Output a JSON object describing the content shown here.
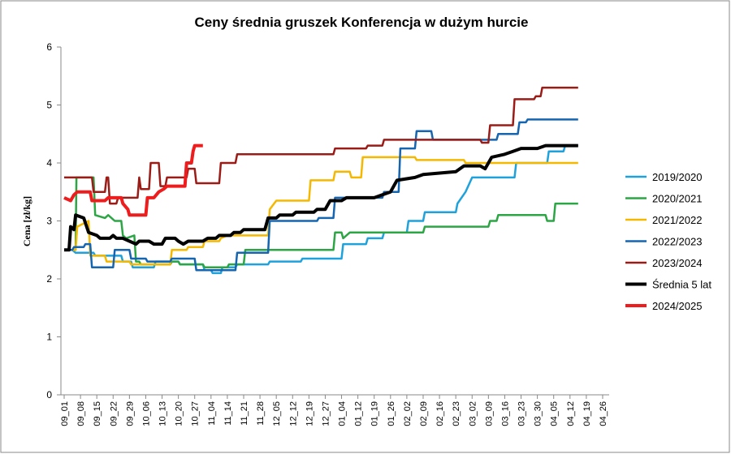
{
  "chart_data": {
    "type": "line",
    "title": "Ceny średnia gruszek Konferencja w dużym hurcie",
    "xlabel": "",
    "ylabel": "Cena [zł/kg]",
    "ylim": [
      0,
      6
    ],
    "yticks": [
      0,
      1,
      2,
      3,
      4,
      5,
      6
    ],
    "grid": "horizontal-none",
    "legend_position": "right",
    "x_ticks": [
      "09_01",
      "09_08",
      "09_15",
      "09_22",
      "09_29",
      "10_06",
      "10_13",
      "10_20",
      "10_27",
      "11_04",
      "11_14",
      "11_21",
      "11_28",
      "12_05",
      "12_12",
      "12_19",
      "12_27",
      "01_04",
      "01_12",
      "01_19",
      "01_26",
      "02_02",
      "02_09",
      "02_16",
      "02_23",
      "03_02",
      "03_09",
      "03_16",
      "03_23",
      "03_30",
      "04_05",
      "04_12",
      "04_19",
      "04_26"
    ],
    "series": [
      {
        "name": "2019/2020",
        "color": "#1fa2dc",
        "width": 2.5,
        "points": [
          [
            0,
            2.5
          ],
          [
            0.5,
            2.5
          ],
          [
            0.7,
            2.45
          ],
          [
            1.8,
            2.45
          ],
          [
            1.9,
            2.4
          ],
          [
            3.5,
            2.4
          ],
          [
            3.6,
            2.3
          ],
          [
            4.1,
            2.3
          ],
          [
            4.2,
            2.2
          ],
          [
            5.5,
            2.2
          ],
          [
            5.6,
            2.3
          ],
          [
            7.0,
            2.3
          ],
          [
            7.1,
            2.25
          ],
          [
            8.5,
            2.25
          ],
          [
            8.6,
            2.15
          ],
          [
            9.0,
            2.15
          ],
          [
            9.1,
            2.1
          ],
          [
            9.6,
            2.1
          ],
          [
            9.7,
            2.2
          ],
          [
            10.5,
            2.2
          ],
          [
            10.6,
            2.25
          ],
          [
            12.5,
            2.25
          ],
          [
            12.6,
            2.3
          ],
          [
            14.5,
            2.3
          ],
          [
            14.6,
            2.35
          ],
          [
            17.0,
            2.35
          ],
          [
            17.1,
            2.6
          ],
          [
            18.5,
            2.6
          ],
          [
            18.6,
            2.7
          ],
          [
            19.5,
            2.7
          ],
          [
            19.6,
            2.8
          ],
          [
            21.0,
            2.8
          ],
          [
            21.1,
            3.0
          ],
          [
            22.0,
            3.0
          ],
          [
            22.1,
            3.15
          ],
          [
            24.0,
            3.15
          ],
          [
            24.1,
            3.3
          ],
          [
            24.6,
            3.5
          ],
          [
            25.0,
            3.75
          ],
          [
            27.6,
            3.75
          ],
          [
            27.7,
            4.0
          ],
          [
            29.6,
            4.0
          ],
          [
            29.7,
            4.2
          ],
          [
            30.6,
            4.2
          ],
          [
            30.7,
            4.3
          ],
          [
            31.5,
            4.3
          ]
        ]
      },
      {
        "name": "2020/2021",
        "color": "#2ca645",
        "width": 2.5,
        "points": [
          [
            0,
            2.5
          ],
          [
            0.7,
            2.5
          ],
          [
            0.75,
            3.75
          ],
          [
            1.8,
            3.75
          ],
          [
            1.9,
            3.1
          ],
          [
            2.5,
            3.05
          ],
          [
            2.7,
            3.1
          ],
          [
            3.1,
            3.0
          ],
          [
            3.5,
            3.0
          ],
          [
            3.6,
            2.75
          ],
          [
            3.8,
            2.7
          ],
          [
            4.3,
            2.75
          ],
          [
            4.4,
            2.3
          ],
          [
            4.6,
            2.3
          ],
          [
            4.7,
            2.25
          ],
          [
            6.5,
            2.25
          ],
          [
            6.6,
            2.3
          ],
          [
            7.0,
            2.3
          ],
          [
            7.1,
            2.25
          ],
          [
            8.5,
            2.25
          ],
          [
            8.6,
            2.2
          ],
          [
            10.0,
            2.2
          ],
          [
            10.1,
            2.25
          ],
          [
            11.0,
            2.25
          ],
          [
            11.1,
            2.5
          ],
          [
            16.5,
            2.5
          ],
          [
            16.6,
            2.8
          ],
          [
            17.0,
            2.8
          ],
          [
            17.1,
            2.7
          ],
          [
            17.5,
            2.8
          ],
          [
            22.0,
            2.8
          ],
          [
            22.1,
            2.9
          ],
          [
            26.0,
            2.9
          ],
          [
            26.1,
            3.0
          ],
          [
            26.5,
            3.0
          ],
          [
            26.6,
            3.1
          ],
          [
            29.5,
            3.1
          ],
          [
            29.6,
            3.0
          ],
          [
            30.0,
            3.0
          ],
          [
            30.1,
            3.3
          ],
          [
            31.5,
            3.3
          ]
        ]
      },
      {
        "name": "2021/2022",
        "color": "#f5b800",
        "width": 2.5,
        "points": [
          [
            0,
            2.5
          ],
          [
            0.7,
            2.5
          ],
          [
            0.8,
            2.9
          ],
          [
            1.5,
            3.0
          ],
          [
            1.6,
            2.4
          ],
          [
            2.5,
            2.4
          ],
          [
            2.6,
            2.3
          ],
          [
            4.0,
            2.3
          ],
          [
            4.1,
            2.25
          ],
          [
            6.5,
            2.25
          ],
          [
            6.6,
            2.5
          ],
          [
            7.5,
            2.5
          ],
          [
            7.6,
            2.55
          ],
          [
            8.5,
            2.55
          ],
          [
            8.6,
            2.65
          ],
          [
            9.5,
            2.65
          ],
          [
            9.6,
            2.7
          ],
          [
            10.0,
            2.75
          ],
          [
            12.5,
            2.75
          ],
          [
            12.6,
            3.2
          ],
          [
            13.0,
            3.35
          ],
          [
            15.0,
            3.35
          ],
          [
            15.1,
            3.7
          ],
          [
            16.5,
            3.7
          ],
          [
            16.6,
            3.85
          ],
          [
            17.5,
            3.85
          ],
          [
            17.6,
            3.75
          ],
          [
            18.2,
            3.75
          ],
          [
            18.3,
            4.1
          ],
          [
            21.5,
            4.1
          ],
          [
            21.6,
            4.05
          ],
          [
            24.5,
            4.05
          ],
          [
            24.6,
            4.0
          ],
          [
            31.5,
            4.0
          ]
        ]
      },
      {
        "name": "2022/2023",
        "color": "#1565b0",
        "width": 2.5,
        "points": [
          [
            0,
            2.5
          ],
          [
            0.5,
            2.5
          ],
          [
            0.6,
            2.55
          ],
          [
            1.2,
            2.55
          ],
          [
            1.3,
            2.6
          ],
          [
            1.6,
            2.6
          ],
          [
            1.7,
            2.2
          ],
          [
            3.0,
            2.2
          ],
          [
            3.1,
            2.5
          ],
          [
            4.0,
            2.5
          ],
          [
            4.1,
            2.35
          ],
          [
            5.0,
            2.35
          ],
          [
            5.1,
            2.3
          ],
          [
            6.5,
            2.3
          ],
          [
            6.6,
            2.35
          ],
          [
            8.0,
            2.35
          ],
          [
            8.1,
            2.15
          ],
          [
            10.5,
            2.15
          ],
          [
            10.6,
            2.45
          ],
          [
            12.5,
            2.45
          ],
          [
            12.6,
            3.0
          ],
          [
            15.5,
            3.0
          ],
          [
            15.6,
            3.05
          ],
          [
            16.5,
            3.05
          ],
          [
            16.6,
            3.4
          ],
          [
            19.5,
            3.4
          ],
          [
            19.6,
            3.5
          ],
          [
            20.5,
            3.5
          ],
          [
            20.6,
            4.25
          ],
          [
            21.5,
            4.25
          ],
          [
            21.6,
            4.55
          ],
          [
            22.5,
            4.55
          ],
          [
            22.6,
            4.4
          ],
          [
            26.5,
            4.4
          ],
          [
            26.6,
            4.5
          ],
          [
            27.8,
            4.5
          ],
          [
            27.9,
            4.7
          ],
          [
            28.3,
            4.7
          ],
          [
            28.4,
            4.75
          ],
          [
            31.5,
            4.75
          ]
        ]
      },
      {
        "name": "2023/2024",
        "color": "#9b1b17",
        "width": 2.5,
        "points": [
          [
            0,
            3.75
          ],
          [
            1.7,
            3.75
          ],
          [
            1.8,
            3.5
          ],
          [
            2.5,
            3.5
          ],
          [
            2.6,
            3.75
          ],
          [
            2.7,
            3.75
          ],
          [
            2.8,
            3.3
          ],
          [
            3.2,
            3.3
          ],
          [
            3.3,
            3.4
          ],
          [
            4.5,
            3.4
          ],
          [
            4.6,
            3.75
          ],
          [
            4.7,
            3.55
          ],
          [
            5.2,
            3.55
          ],
          [
            5.3,
            4.0
          ],
          [
            5.8,
            4.0
          ],
          [
            5.9,
            3.6
          ],
          [
            6.2,
            3.6
          ],
          [
            6.3,
            3.75
          ],
          [
            7.5,
            3.75
          ],
          [
            7.6,
            3.9
          ],
          [
            8.0,
            3.9
          ],
          [
            8.1,
            3.65
          ],
          [
            9.5,
            3.65
          ],
          [
            9.6,
            4.0
          ],
          [
            10.5,
            4.0
          ],
          [
            10.6,
            4.15
          ],
          [
            16.5,
            4.15
          ],
          [
            16.6,
            4.25
          ],
          [
            18.5,
            4.25
          ],
          [
            18.6,
            4.3
          ],
          [
            19.5,
            4.3
          ],
          [
            19.6,
            4.4
          ],
          [
            25.5,
            4.4
          ],
          [
            25.6,
            4.35
          ],
          [
            26.0,
            4.35
          ],
          [
            26.1,
            4.65
          ],
          [
            27.5,
            4.65
          ],
          [
            27.6,
            5.1
          ],
          [
            28.8,
            5.1
          ],
          [
            28.9,
            5.15
          ],
          [
            29.2,
            5.15
          ],
          [
            29.3,
            5.3
          ],
          [
            31.5,
            5.3
          ]
        ]
      },
      {
        "name": "Średnia 5 lat",
        "color": "#000000",
        "width": 4,
        "points": [
          [
            0,
            2.5
          ],
          [
            0.3,
            2.5
          ],
          [
            0.4,
            2.9
          ],
          [
            0.6,
            2.85
          ],
          [
            0.7,
            3.1
          ],
          [
            1.2,
            3.05
          ],
          [
            1.5,
            2.8
          ],
          [
            2.0,
            2.75
          ],
          [
            2.2,
            2.7
          ],
          [
            2.8,
            2.7
          ],
          [
            3.0,
            2.75
          ],
          [
            3.2,
            2.7
          ],
          [
            3.6,
            2.7
          ],
          [
            4.0,
            2.65
          ],
          [
            4.4,
            2.6
          ],
          [
            4.6,
            2.65
          ],
          [
            5.2,
            2.65
          ],
          [
            5.5,
            2.6
          ],
          [
            6.0,
            2.6
          ],
          [
            6.2,
            2.7
          ],
          [
            6.8,
            2.7
          ],
          [
            7.0,
            2.65
          ],
          [
            7.3,
            2.6
          ],
          [
            7.6,
            2.65
          ],
          [
            8.3,
            2.65
          ],
          [
            8.5,
            2.65
          ],
          [
            8.8,
            2.7
          ],
          [
            9.3,
            2.7
          ],
          [
            9.5,
            2.75
          ],
          [
            10.2,
            2.75
          ],
          [
            10.4,
            2.8
          ],
          [
            10.8,
            2.8
          ],
          [
            11.0,
            2.85
          ],
          [
            12.3,
            2.85
          ],
          [
            12.5,
            3.05
          ],
          [
            13.0,
            3.05
          ],
          [
            13.2,
            3.1
          ],
          [
            14.0,
            3.1
          ],
          [
            14.2,
            3.15
          ],
          [
            15.3,
            3.15
          ],
          [
            15.5,
            3.2
          ],
          [
            16.0,
            3.2
          ],
          [
            16.3,
            3.35
          ],
          [
            17.0,
            3.35
          ],
          [
            17.3,
            3.4
          ],
          [
            19.0,
            3.4
          ],
          [
            19.5,
            3.45
          ],
          [
            20.0,
            3.5
          ],
          [
            20.4,
            3.7
          ],
          [
            21.5,
            3.75
          ],
          [
            22.0,
            3.8
          ],
          [
            24.0,
            3.85
          ],
          [
            24.5,
            3.95
          ],
          [
            25.5,
            3.95
          ],
          [
            25.8,
            3.9
          ],
          [
            26.2,
            4.1
          ],
          [
            27.0,
            4.15
          ],
          [
            27.5,
            4.2
          ],
          [
            28.0,
            4.25
          ],
          [
            29.0,
            4.25
          ],
          [
            29.5,
            4.3
          ],
          [
            31.5,
            4.3
          ]
        ]
      },
      {
        "name": "2024/2025",
        "color": "#ee1c1c",
        "width": 4,
        "points": [
          [
            0,
            3.4
          ],
          [
            0.4,
            3.35
          ],
          [
            0.6,
            3.45
          ],
          [
            0.8,
            3.5
          ],
          [
            1.6,
            3.5
          ],
          [
            1.7,
            3.35
          ],
          [
            2.5,
            3.35
          ],
          [
            2.7,
            3.4
          ],
          [
            3.5,
            3.4
          ],
          [
            3.6,
            3.3
          ],
          [
            3.9,
            3.2
          ],
          [
            4.0,
            3.1
          ],
          [
            5.0,
            3.1
          ],
          [
            5.1,
            3.4
          ],
          [
            5.5,
            3.4
          ],
          [
            5.8,
            3.5
          ],
          [
            6.1,
            3.55
          ],
          [
            6.3,
            3.6
          ],
          [
            7.4,
            3.6
          ],
          [
            7.5,
            4.0
          ],
          [
            7.8,
            4.0
          ],
          [
            7.9,
            4.2
          ],
          [
            8.0,
            4.3
          ],
          [
            8.5,
            4.3
          ]
        ]
      }
    ],
    "legend_entries": [
      "2019/2020",
      "2020/2021",
      "2021/2022",
      "2022/2023",
      "2023/2024",
      "Średnia 5 lat",
      "2024/2025"
    ]
  }
}
